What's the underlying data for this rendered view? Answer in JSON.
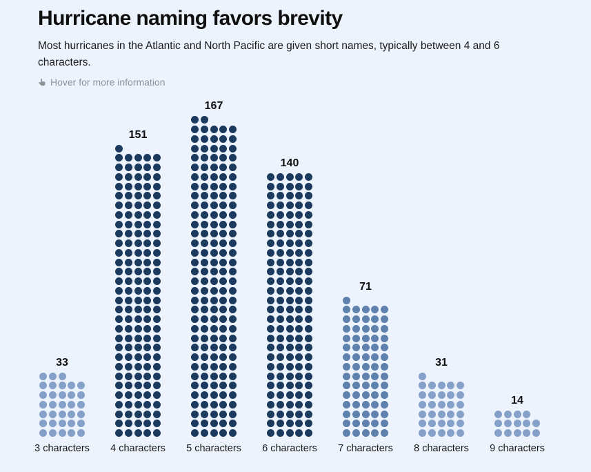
{
  "header": {
    "title": "Hurricane naming favors brevity",
    "subtitle": "Most hurricanes in the Atlantic and North Pacific are given short names, typically between 4 and 6 characters.",
    "hover_note": "Hover for more information"
  },
  "colors": {
    "background": "#edf3fc",
    "dot_dark": "#1b3a5e",
    "dot_medium": "#5f81ad",
    "dot_light": "#85a1c9",
    "title_text": "#0f0f0f",
    "body_text": "#1a1a1a",
    "note_text": "#8e9297"
  },
  "icons": {
    "hover_icon": "hand-pointer-icon"
  },
  "chart_data": {
    "type": "bar",
    "style": "dot-matrix",
    "dots_per_row": 5,
    "title": "Hurricane naming favors brevity",
    "subtitle": "Most hurricanes in the Atlantic and North Pacific are given short names, typically between 4 and 6 characters.",
    "xlabel": "",
    "ylabel": "",
    "legend": "none",
    "grid": "off",
    "partial_row_position": "top-left-aligned",
    "categories": [
      "3 characters",
      "4 characters",
      "5 characters",
      "6 characters",
      "7 characters",
      "8 characters",
      "9 characters"
    ],
    "values": [
      33,
      151,
      167,
      140,
      71,
      31,
      14
    ],
    "value_labels": [
      "33",
      "151",
      "167",
      "140",
      "71",
      "31",
      "14"
    ],
    "dot_colors": [
      "#85a1c9",
      "#1b3a5e",
      "#1b3a5e",
      "#1b3a5e",
      "#5f81ad",
      "#85a1c9",
      "#85a1c9"
    ]
  }
}
